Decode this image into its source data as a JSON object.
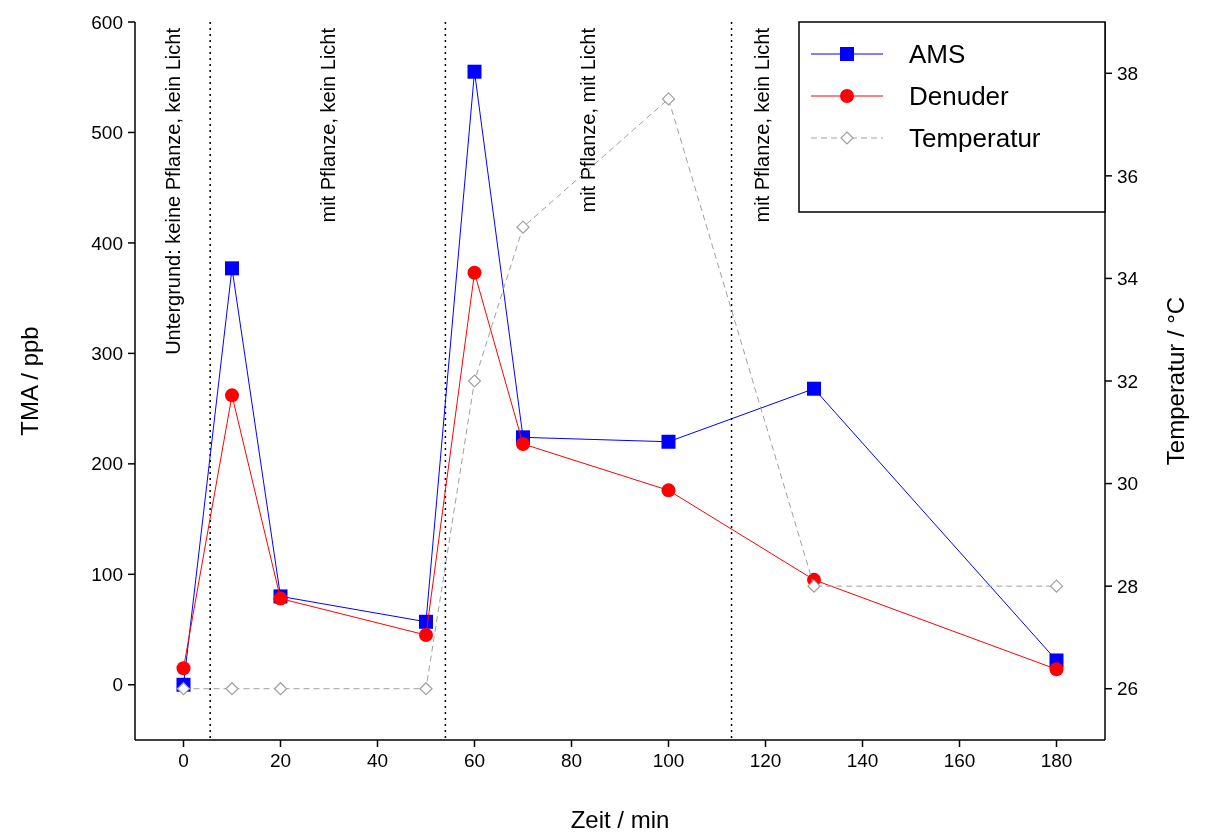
{
  "chart_data": {
    "type": "line",
    "xlabel": "Zeit / min",
    "ylabel": "TMA / ppb",
    "y2label": "Temperatur / °C",
    "xlim": [
      -10,
      190
    ],
    "xticks": [
      0,
      20,
      40,
      60,
      80,
      100,
      120,
      140,
      160,
      180
    ],
    "ylim": [
      -50,
      600
    ],
    "yticks": [
      0,
      100,
      200,
      300,
      400,
      500,
      600
    ],
    "y2lim": [
      25,
      39
    ],
    "y2ticks": [
      26,
      28,
      30,
      32,
      34,
      36,
      38
    ],
    "x": [
      0,
      10,
      20,
      50,
      60,
      70,
      100,
      130,
      180
    ],
    "series": [
      {
        "name": "AMS",
        "color": "#0000ff",
        "marker": "square",
        "line_style": "solid",
        "values": [
          0,
          377,
          80,
          57,
          555,
          224,
          220,
          268,
          22
        ]
      },
      {
        "name": "Denuder",
        "color": "#ff0000",
        "marker": "circle",
        "line_style": "solid",
        "values": [
          15,
          262,
          78,
          45,
          373,
          218,
          176,
          95,
          14
        ]
      },
      {
        "name": "Temperatur",
        "color": "#a0a0a0",
        "marker": "diamond",
        "line_style": "dashed",
        "axis": "y2",
        "values": [
          26,
          26,
          26,
          26,
          32,
          35,
          37.5,
          28,
          28
        ]
      }
    ],
    "ref_lines": [
      {
        "axis": "x",
        "value": 5.5,
        "color": "#000000",
        "line_style": "dotted"
      },
      {
        "axis": "x",
        "value": 54,
        "color": "#000000",
        "line_style": "dotted"
      },
      {
        "axis": "x",
        "value": 113,
        "color": "#000000",
        "line_style": "dotted"
      }
    ],
    "annotations": [
      "Untergrund: keine Pflanze, kein Licht",
      "mit Pflanze, kein Licht",
      "mit Pflanze, mit Licht",
      "mit Pflanze, kein Licht"
    ],
    "legend": "top right",
    "grid": false
  }
}
